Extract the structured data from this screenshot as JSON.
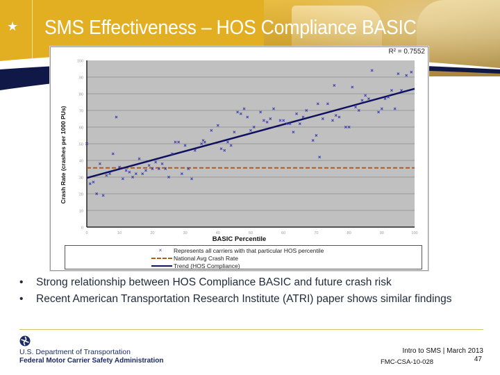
{
  "header": {
    "star_icon": "star-icon",
    "title": "SMS Effectiveness – HOS Compliance BASIC"
  },
  "chart": {
    "r_squared_label": "R² = 0.7552",
    "ylabel": "Crash Rate (crashes per 1000 PUs)",
    "xlabel": "BASIC Percentile",
    "legend": [
      {
        "symbol": "x-marker",
        "label": "Represents all carriers with that particular HOS percentile"
      },
      {
        "symbol": "dashed-line",
        "label": "National Avg Crash Rate"
      },
      {
        "symbol": "solid-line",
        "label": "Trend (HOS Compliance)"
      }
    ]
  },
  "colors": {
    "header_gold": "#e2ae22",
    "navy": "#1b2b66",
    "plot_bg": "#c0c0c0",
    "points": "#3a3ab0",
    "trend": "#101060",
    "national_avg": "#b05a1e"
  },
  "bullets": [
    "Strong relationship between HOS Compliance BASIC and future crash risk",
    "Recent American Transportation Research Institute (ATRI) paper shows similar findings"
  ],
  "footer": {
    "dot_name": "U.S. Department of Transportation",
    "agency_name": "Federal Motor Carrier Safety Administration",
    "course_date": "Intro to SMS | March 2013",
    "doc_code": "FMC-CSA-10-028",
    "page_number": "47"
  },
  "chart_data": {
    "type": "scatter",
    "title": "",
    "xlabel": "BASIC Percentile",
    "ylabel": "Crash Rate (crashes per 1000 PUs)",
    "xlim": [
      0,
      100
    ],
    "ylim": [
      0,
      100
    ],
    "x_ticks": [
      0,
      10,
      20,
      30,
      40,
      50,
      60,
      70,
      80,
      90,
      100
    ],
    "y_ticks": [
      0,
      10,
      20,
      30,
      40,
      50,
      60,
      70,
      80,
      90,
      100
    ],
    "grid": "horizontal",
    "legend_position": "bottom",
    "annotations": [
      "R² = 0.7552"
    ],
    "series": [
      {
        "name": "Represents all carriers with that particular HOS percentile",
        "kind": "scatter",
        "points": [
          [
            0,
            50
          ],
          [
            1,
            26
          ],
          [
            2,
            27
          ],
          [
            3,
            20
          ],
          [
            4,
            38
          ],
          [
            5,
            19
          ],
          [
            6,
            31
          ],
          [
            7,
            32
          ],
          [
            8,
            44
          ],
          [
            9,
            66
          ],
          [
            10,
            36
          ],
          [
            11,
            29
          ],
          [
            12,
            34
          ],
          [
            13,
            33
          ],
          [
            14,
            30
          ],
          [
            15,
            32
          ],
          [
            16,
            41
          ],
          [
            17,
            32
          ],
          [
            18,
            34
          ],
          [
            19,
            37
          ],
          [
            20,
            35
          ],
          [
            21,
            39
          ],
          [
            22,
            35
          ],
          [
            23,
            38
          ],
          [
            24,
            35
          ],
          [
            25,
            30
          ],
          [
            26,
            44
          ],
          [
            27,
            51
          ],
          [
            28,
            51
          ],
          [
            29,
            32
          ],
          [
            30,
            49
          ],
          [
            31,
            35
          ],
          [
            32,
            29
          ],
          [
            33,
            46
          ],
          [
            35,
            50
          ],
          [
            35.5,
            52
          ],
          [
            36,
            51
          ],
          [
            38,
            58
          ],
          [
            40,
            61
          ],
          [
            41,
            47
          ],
          [
            42,
            46
          ],
          [
            43,
            51
          ],
          [
            44,
            49
          ],
          [
            45,
            57
          ],
          [
            46,
            69
          ],
          [
            47,
            68
          ],
          [
            48,
            71
          ],
          [
            49,
            66
          ],
          [
            50,
            58
          ],
          [
            51,
            60
          ],
          [
            53,
            69
          ],
          [
            54,
            64
          ],
          [
            55,
            63
          ],
          [
            56,
            65
          ],
          [
            57,
            71
          ],
          [
            59,
            64
          ],
          [
            60,
            64
          ],
          [
            61,
            62
          ],
          [
            62,
            62
          ],
          [
            63,
            57
          ],
          [
            64,
            68
          ],
          [
            65,
            62
          ],
          [
            66,
            66
          ],
          [
            67,
            70
          ],
          [
            69,
            52
          ],
          [
            70,
            55
          ],
          [
            70.5,
            74
          ],
          [
            71,
            42
          ],
          [
            72,
            65
          ],
          [
            73.5,
            74
          ],
          [
            75,
            64
          ],
          [
            75.5,
            85
          ],
          [
            76,
            67
          ],
          [
            77,
            66
          ],
          [
            79,
            60
          ],
          [
            80,
            60
          ],
          [
            81,
            84
          ],
          [
            82,
            72
          ],
          [
            83,
            70
          ],
          [
            84,
            76
          ],
          [
            85,
            79
          ],
          [
            86,
            77
          ],
          [
            87,
            94
          ],
          [
            89,
            69
          ],
          [
            90,
            71
          ],
          [
            91,
            77
          ],
          [
            92,
            78
          ],
          [
            93,
            82
          ],
          [
            94,
            71
          ],
          [
            95,
            92
          ],
          [
            96,
            82
          ],
          [
            97.5,
            91
          ],
          [
            99,
            93
          ]
        ]
      },
      {
        "name": "National Avg Crash Rate",
        "kind": "line",
        "style": "dashed",
        "points": [
          [
            0,
            35.5
          ],
          [
            100,
            35.5
          ]
        ]
      },
      {
        "name": "Trend (HOS Compliance)",
        "kind": "line",
        "style": "solid",
        "points": [
          [
            0,
            29.5
          ],
          [
            100,
            83
          ]
        ]
      }
    ]
  }
}
